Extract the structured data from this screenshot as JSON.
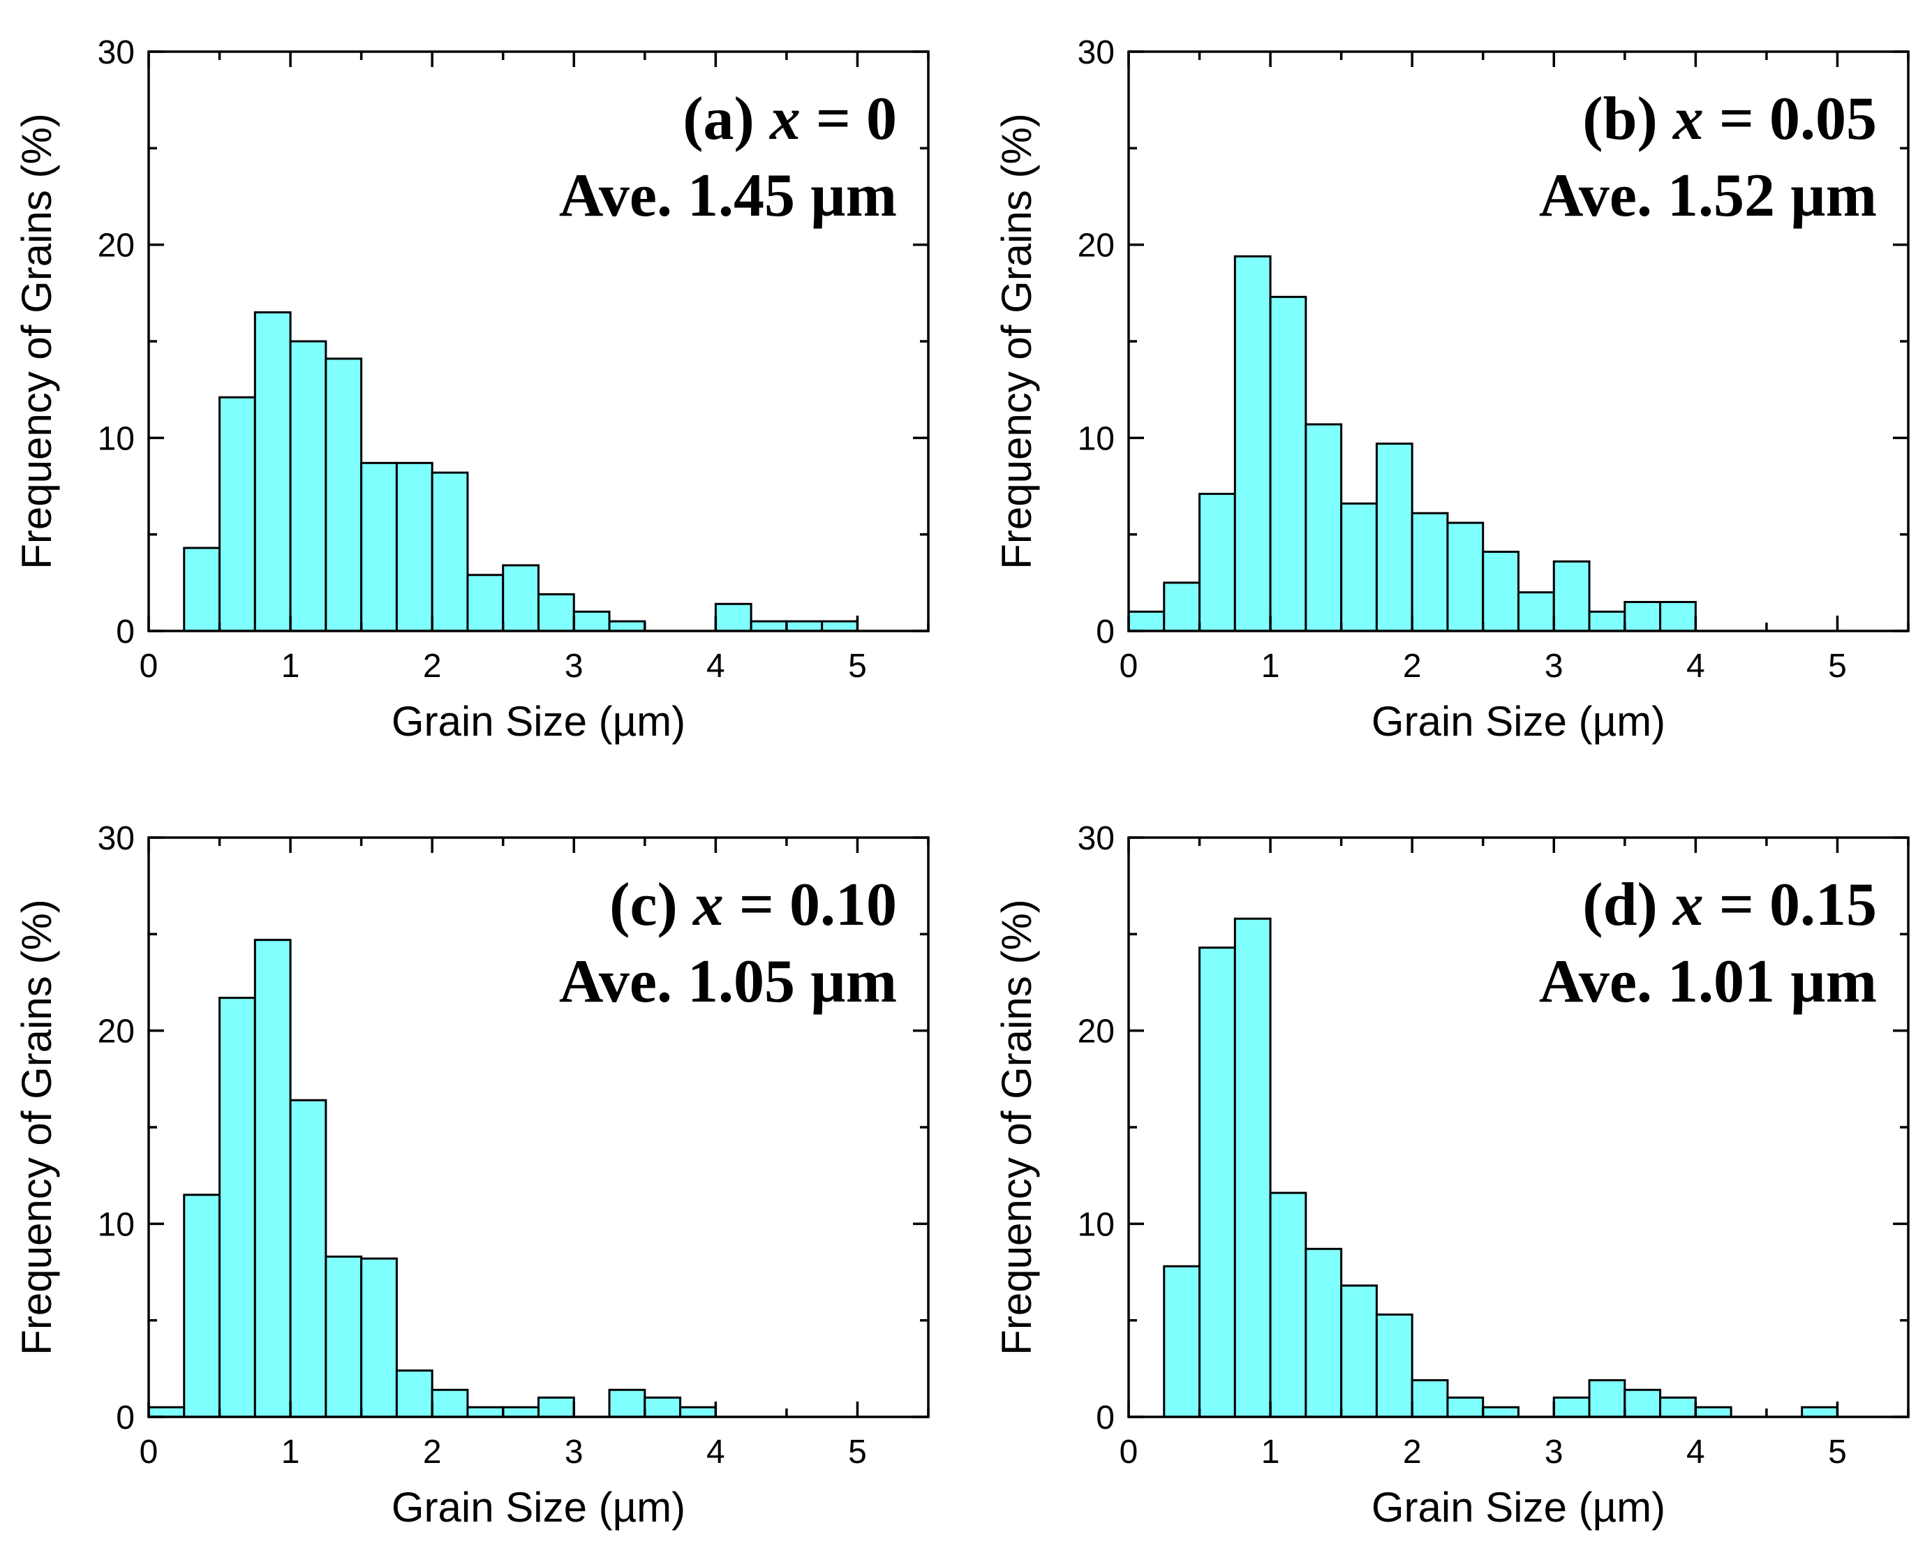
{
  "figure": {
    "colors": {
      "bar_fill": "#80ffff",
      "bar_edge": "#000000",
      "axis": "#000000"
    }
  },
  "chart_data": [
    {
      "type": "bar",
      "panel_label": "(a)",
      "annotation_var": "x",
      "annotation_value": "= 0",
      "annotation_line2": "Ave. 1.45 µm",
      "xlabel": "Grain Size (µm)",
      "ylabel": "Frequency of Grains (%)",
      "xlim": [
        0,
        5.5
      ],
      "ylim": [
        0,
        30
      ],
      "xticks": [
        "0",
        "1",
        "2",
        "3",
        "4",
        "5"
      ],
      "yticks": [
        "0",
        "10",
        "20",
        "30"
      ],
      "bin_width": 0.25,
      "x": [
        0.375,
        0.625,
        0.875,
        1.125,
        1.375,
        1.625,
        1.875,
        2.125,
        2.375,
        2.625,
        2.875,
        3.125,
        3.375,
        4.125,
        4.375,
        4.625,
        4.875
      ],
      "values": [
        4.3,
        12.1,
        16.5,
        15.0,
        14.1,
        8.7,
        8.7,
        8.2,
        2.9,
        3.4,
        1.9,
        1.0,
        0.5,
        1.4,
        0.5,
        0.5,
        0.5
      ]
    },
    {
      "type": "bar",
      "panel_label": "(b)",
      "annotation_var": "x",
      "annotation_value": "= 0.05",
      "annotation_line2": "Ave. 1.52 µm",
      "xlabel": "Grain Size (µm)",
      "ylabel": "Frequency of Grains (%)",
      "xlim": [
        0,
        5.5
      ],
      "ylim": [
        0,
        30
      ],
      "xticks": [
        "0",
        "1",
        "2",
        "3",
        "4",
        "5"
      ],
      "yticks": [
        "0",
        "10",
        "20",
        "30"
      ],
      "bin_width": 0.25,
      "x": [
        0.125,
        0.375,
        0.625,
        0.875,
        1.125,
        1.375,
        1.625,
        1.875,
        2.125,
        2.375,
        2.625,
        2.875,
        3.125,
        3.375,
        3.625,
        3.875
      ],
      "values": [
        1.0,
        2.5,
        7.1,
        19.4,
        17.3,
        10.7,
        6.6,
        9.7,
        6.1,
        5.6,
        4.1,
        2.0,
        3.6,
        1.0,
        1.5,
        1.5
      ]
    },
    {
      "type": "bar",
      "panel_label": "(c)",
      "annotation_var": "x",
      "annotation_value": "= 0.10",
      "annotation_line2": "Ave. 1.05 µm",
      "xlabel": "Grain Size (µm)",
      "ylabel": "Frequency of Grains (%)",
      "xlim": [
        0,
        5.5
      ],
      "ylim": [
        0,
        30
      ],
      "xticks": [
        "0",
        "1",
        "2",
        "3",
        "4",
        "5"
      ],
      "yticks": [
        "0",
        "10",
        "20",
        "30"
      ],
      "bin_width": 0.25,
      "x": [
        0.125,
        0.375,
        0.625,
        0.875,
        1.125,
        1.375,
        1.625,
        1.875,
        2.125,
        2.375,
        2.625,
        2.875,
        3.375,
        3.625,
        3.875
      ],
      "values": [
        0.5,
        11.5,
        21.7,
        24.7,
        16.4,
        8.3,
        8.2,
        2.4,
        1.4,
        0.5,
        0.5,
        1.0,
        1.4,
        1.0,
        0.5
      ]
    },
    {
      "type": "bar",
      "panel_label": "(d)",
      "annotation_var": "x",
      "annotation_value": "= 0.15",
      "annotation_line2": "Ave. 1.01 µm",
      "xlabel": "Grain Size (µm)",
      "ylabel": "Frequency of Grains (%)",
      "xlim": [
        0,
        5.5
      ],
      "ylim": [
        0,
        30
      ],
      "xticks": [
        "0",
        "1",
        "2",
        "3",
        "4",
        "5"
      ],
      "yticks": [
        "0",
        "10",
        "20",
        "30"
      ],
      "bin_width": 0.25,
      "x": [
        0.375,
        0.625,
        0.875,
        1.125,
        1.375,
        1.625,
        1.875,
        2.125,
        2.375,
        2.625,
        3.125,
        3.375,
        3.625,
        3.875,
        4.125,
        4.875
      ],
      "values": [
        7.8,
        24.3,
        25.8,
        11.6,
        8.7,
        6.8,
        5.3,
        1.9,
        1.0,
        0.5,
        1.0,
        1.9,
        1.4,
        1.0,
        0.5,
        0.5
      ]
    }
  ]
}
